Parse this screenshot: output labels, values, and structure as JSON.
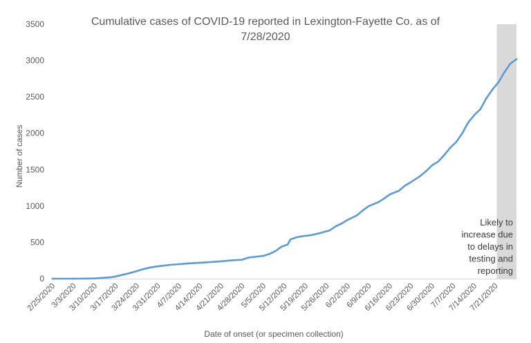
{
  "chart_data": {
    "type": "line",
    "title_lines": [
      "Cumulative cases of COVID-19 reported in Lexington-Fayette Co.  as of",
      "7/28/2020"
    ],
    "xlabel": "Date of onset (or specimen collection)",
    "ylabel": "Number of cases",
    "ylim": [
      0,
      3500
    ],
    "y_ticks": [
      "0",
      "500",
      "1000",
      "1500",
      "2000",
      "2500",
      "3000",
      "3500"
    ],
    "x_range": [
      "2/25/2020",
      "7/28/2020"
    ],
    "x_tick_labels": [
      "2/25/2020",
      "3/3/2020",
      "3/10/2020",
      "3/17/2020",
      "3/24/2020",
      "3/31/2020",
      "4/7/2020",
      "4/14/2020",
      "4/21/2020",
      "4/28/2020",
      "5/5/2020",
      "5/12/2020",
      "5/19/2020",
      "5/26/2020",
      "6/2/2020",
      "6/9/2020",
      "6/16/2020",
      "6/23/2020",
      "6/30/2020",
      "7/7/2020",
      "7/14/2020",
      "7/21/2020"
    ],
    "grid": false,
    "legend": "none",
    "series": [
      {
        "color": "#5b9bd5",
        "points": [
          [
            "2/25/2020",
            0
          ],
          [
            "3/3/2020",
            0
          ],
          [
            "3/8/2020",
            2
          ],
          [
            "3/10/2020",
            5
          ],
          [
            "3/13/2020",
            12
          ],
          [
            "3/15/2020",
            18
          ],
          [
            "3/17/2020",
            30
          ],
          [
            "3/19/2020",
            50
          ],
          [
            "3/21/2020",
            70
          ],
          [
            "3/22/2020",
            82
          ],
          [
            "3/24/2020",
            105
          ],
          [
            "3/26/2020",
            130
          ],
          [
            "3/28/2020",
            150
          ],
          [
            "3/30/2020",
            165
          ],
          [
            "4/1/2020",
            175
          ],
          [
            "4/4/2020",
            190
          ],
          [
            "4/7/2020",
            200
          ],
          [
            "4/10/2020",
            210
          ],
          [
            "4/14/2020",
            220
          ],
          [
            "4/18/2020",
            230
          ],
          [
            "4/21/2020",
            240
          ],
          [
            "4/24/2020",
            250
          ],
          [
            "4/28/2020",
            262
          ],
          [
            "4/30/2020",
            290
          ],
          [
            "5/2/2020",
            300
          ],
          [
            "5/5/2020",
            315
          ],
          [
            "5/7/2020",
            340
          ],
          [
            "5/9/2020",
            380
          ],
          [
            "5/11/2020",
            440
          ],
          [
            "5/13/2020",
            470
          ],
          [
            "5/14/2020",
            540
          ],
          [
            "5/16/2020",
            570
          ],
          [
            "5/18/2020",
            585
          ],
          [
            "5/21/2020",
            600
          ],
          [
            "5/24/2020",
            630
          ],
          [
            "5/27/2020",
            665
          ],
          [
            "5/29/2020",
            720
          ],
          [
            "5/31/2020",
            760
          ],
          [
            "6/2/2020",
            810
          ],
          [
            "6/5/2020",
            870
          ],
          [
            "6/7/2020",
            940
          ],
          [
            "6/9/2020",
            1000
          ],
          [
            "6/12/2020",
            1050
          ],
          [
            "6/14/2020",
            1100
          ],
          [
            "6/16/2020",
            1160
          ],
          [
            "6/19/2020",
            1210
          ],
          [
            "6/21/2020",
            1280
          ],
          [
            "6/23/2020",
            1330
          ],
          [
            "6/26/2020",
            1410
          ],
          [
            "6/28/2020",
            1480
          ],
          [
            "6/30/2020",
            1560
          ],
          [
            "7/2/2020",
            1610
          ],
          [
            "7/4/2020",
            1700
          ],
          [
            "7/6/2020",
            1800
          ],
          [
            "7/8/2020",
            1880
          ],
          [
            "7/10/2020",
            2000
          ],
          [
            "7/12/2020",
            2150
          ],
          [
            "7/14/2020",
            2250
          ],
          [
            "7/16/2020",
            2330
          ],
          [
            "7/18/2020",
            2480
          ],
          [
            "7/20/2020",
            2600
          ],
          [
            "7/22/2020",
            2700
          ],
          [
            "7/24/2020",
            2840
          ],
          [
            "7/26/2020",
            2960
          ],
          [
            "7/28/2020",
            3020
          ]
        ]
      }
    ],
    "shaded_region": {
      "from": "7/21/2020",
      "to": "7/28/2020",
      "color": "#d9d9d9"
    },
    "annotation_lines": [
      "Likely to",
      "increase due",
      "to delays in",
      "testing and",
      "reporting"
    ]
  }
}
